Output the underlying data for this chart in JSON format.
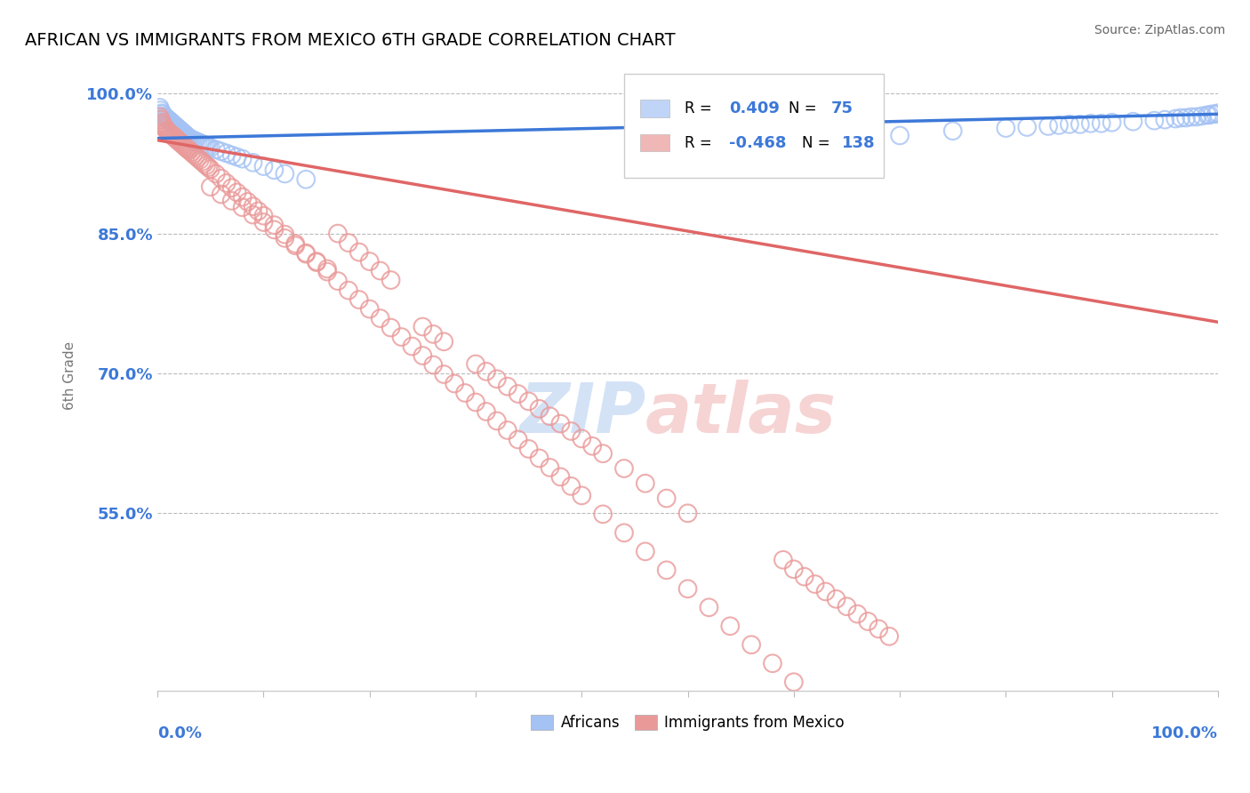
{
  "title": "AFRICAN VS IMMIGRANTS FROM MEXICO 6TH GRADE CORRELATION CHART",
  "source": "Source: ZipAtlas.com",
  "ylabel": "6th Grade",
  "ytick_labels": [
    "55.0%",
    "70.0%",
    "85.0%",
    "100.0%"
  ],
  "ytick_values": [
    0.55,
    0.7,
    0.85,
    1.0
  ],
  "legend1_R": "0.409",
  "legend1_N": "75",
  "legend2_R": "-0.468",
  "legend2_N": "138",
  "blue_scatter_color": "#a4c2f4",
  "pink_scatter_color": "#ea9999",
  "blue_line_color": "#3c78d8",
  "pink_line_color": "#e06666",
  "blue_tick_color": "#3c78d8",
  "africans_x": [
    0.002,
    0.003,
    0.004,
    0.005,
    0.006,
    0.007,
    0.008,
    0.009,
    0.01,
    0.011,
    0.012,
    0.013,
    0.014,
    0.015,
    0.016,
    0.017,
    0.018,
    0.019,
    0.02,
    0.021,
    0.022,
    0.023,
    0.024,
    0.025,
    0.026,
    0.027,
    0.028,
    0.029,
    0.03,
    0.032,
    0.034,
    0.036,
    0.038,
    0.04,
    0.042,
    0.044,
    0.046,
    0.048,
    0.05,
    0.055,
    0.06,
    0.065,
    0.07,
    0.075,
    0.08,
    0.09,
    0.1,
    0.11,
    0.12,
    0.14,
    0.7,
    0.75,
    0.8,
    0.82,
    0.84,
    0.85,
    0.86,
    0.87,
    0.88,
    0.89,
    0.9,
    0.92,
    0.94,
    0.95,
    0.96,
    0.965,
    0.97,
    0.975,
    0.98,
    0.985,
    0.99,
    0.992,
    0.995,
    0.998,
    1.0
  ],
  "africans_y": [
    0.985,
    0.982,
    0.979,
    0.978,
    0.976,
    0.975,
    0.974,
    0.973,
    0.972,
    0.971,
    0.97,
    0.969,
    0.968,
    0.967,
    0.966,
    0.965,
    0.964,
    0.963,
    0.962,
    0.961,
    0.96,
    0.959,
    0.958,
    0.957,
    0.956,
    0.955,
    0.954,
    0.953,
    0.952,
    0.951,
    0.95,
    0.949,
    0.948,
    0.947,
    0.946,
    0.945,
    0.944,
    0.943,
    0.942,
    0.94,
    0.938,
    0.936,
    0.934,
    0.932,
    0.93,
    0.926,
    0.922,
    0.918,
    0.914,
    0.908,
    0.955,
    0.96,
    0.963,
    0.964,
    0.965,
    0.966,
    0.967,
    0.967,
    0.968,
    0.968,
    0.969,
    0.97,
    0.971,
    0.972,
    0.973,
    0.974,
    0.974,
    0.975,
    0.975,
    0.976,
    0.977,
    0.977,
    0.978,
    0.978,
    0.979
  ],
  "mexico_x": [
    0.002,
    0.003,
    0.004,
    0.005,
    0.006,
    0.007,
    0.008,
    0.009,
    0.01,
    0.011,
    0.012,
    0.013,
    0.014,
    0.015,
    0.016,
    0.017,
    0.018,
    0.019,
    0.02,
    0.021,
    0.022,
    0.023,
    0.024,
    0.025,
    0.026,
    0.027,
    0.028,
    0.029,
    0.03,
    0.032,
    0.034,
    0.036,
    0.038,
    0.04,
    0.042,
    0.044,
    0.046,
    0.048,
    0.05,
    0.055,
    0.06,
    0.065,
    0.07,
    0.075,
    0.08,
    0.085,
    0.09,
    0.095,
    0.1,
    0.11,
    0.12,
    0.13,
    0.14,
    0.15,
    0.16,
    0.17,
    0.18,
    0.19,
    0.2,
    0.21,
    0.22,
    0.23,
    0.24,
    0.25,
    0.26,
    0.27,
    0.28,
    0.29,
    0.3,
    0.31,
    0.32,
    0.33,
    0.34,
    0.35,
    0.36,
    0.37,
    0.38,
    0.39,
    0.4,
    0.42,
    0.44,
    0.46,
    0.48,
    0.5,
    0.52,
    0.54,
    0.56,
    0.58,
    0.6,
    0.17,
    0.18,
    0.19,
    0.2,
    0.21,
    0.22,
    0.05,
    0.06,
    0.07,
    0.08,
    0.09,
    0.1,
    0.11,
    0.12,
    0.13,
    0.14,
    0.15,
    0.16,
    0.25,
    0.26,
    0.27,
    0.3,
    0.31,
    0.32,
    0.33,
    0.34,
    0.35,
    0.36,
    0.37,
    0.38,
    0.39,
    0.4,
    0.41,
    0.42,
    0.44,
    0.46,
    0.48,
    0.5,
    0.6,
    0.61,
    0.62,
    0.63,
    0.64,
    0.65,
    0.66,
    0.67,
    0.68,
    0.69,
    0.59
  ],
  "mexico_y": [
    0.975,
    0.972,
    0.969,
    0.967,
    0.965,
    0.963,
    0.961,
    0.96,
    0.959,
    0.958,
    0.957,
    0.956,
    0.955,
    0.954,
    0.953,
    0.952,
    0.951,
    0.95,
    0.949,
    0.948,
    0.947,
    0.946,
    0.945,
    0.944,
    0.943,
    0.942,
    0.941,
    0.94,
    0.939,
    0.937,
    0.935,
    0.933,
    0.931,
    0.929,
    0.927,
    0.925,
    0.923,
    0.921,
    0.919,
    0.914,
    0.909,
    0.904,
    0.899,
    0.894,
    0.889,
    0.884,
    0.879,
    0.874,
    0.869,
    0.859,
    0.849,
    0.839,
    0.829,
    0.819,
    0.809,
    0.799,
    0.789,
    0.779,
    0.769,
    0.759,
    0.749,
    0.739,
    0.729,
    0.719,
    0.709,
    0.699,
    0.689,
    0.679,
    0.669,
    0.659,
    0.649,
    0.639,
    0.629,
    0.619,
    0.609,
    0.599,
    0.589,
    0.579,
    0.569,
    0.549,
    0.529,
    0.509,
    0.489,
    0.469,
    0.449,
    0.429,
    0.409,
    0.389,
    0.369,
    0.85,
    0.84,
    0.83,
    0.82,
    0.81,
    0.8,
    0.9,
    0.892,
    0.885,
    0.878,
    0.87,
    0.862,
    0.854,
    0.845,
    0.837,
    0.828,
    0.82,
    0.812,
    0.75,
    0.742,
    0.734,
    0.71,
    0.702,
    0.694,
    0.686,
    0.678,
    0.67,
    0.662,
    0.654,
    0.646,
    0.638,
    0.63,
    0.622,
    0.614,
    0.598,
    0.582,
    0.566,
    0.55,
    0.49,
    0.482,
    0.474,
    0.466,
    0.458,
    0.45,
    0.442,
    0.434,
    0.426,
    0.418,
    0.5
  ],
  "blue_trend_x": [
    0.0,
    1.0
  ],
  "blue_trend_y": [
    0.952,
    0.978
  ],
  "pink_trend_x": [
    0.0,
    1.0
  ],
  "pink_trend_y": [
    0.95,
    0.755
  ],
  "ylim_min": 0.36,
  "ylim_max": 1.035,
  "xlim_min": 0.0,
  "xlim_max": 1.0
}
